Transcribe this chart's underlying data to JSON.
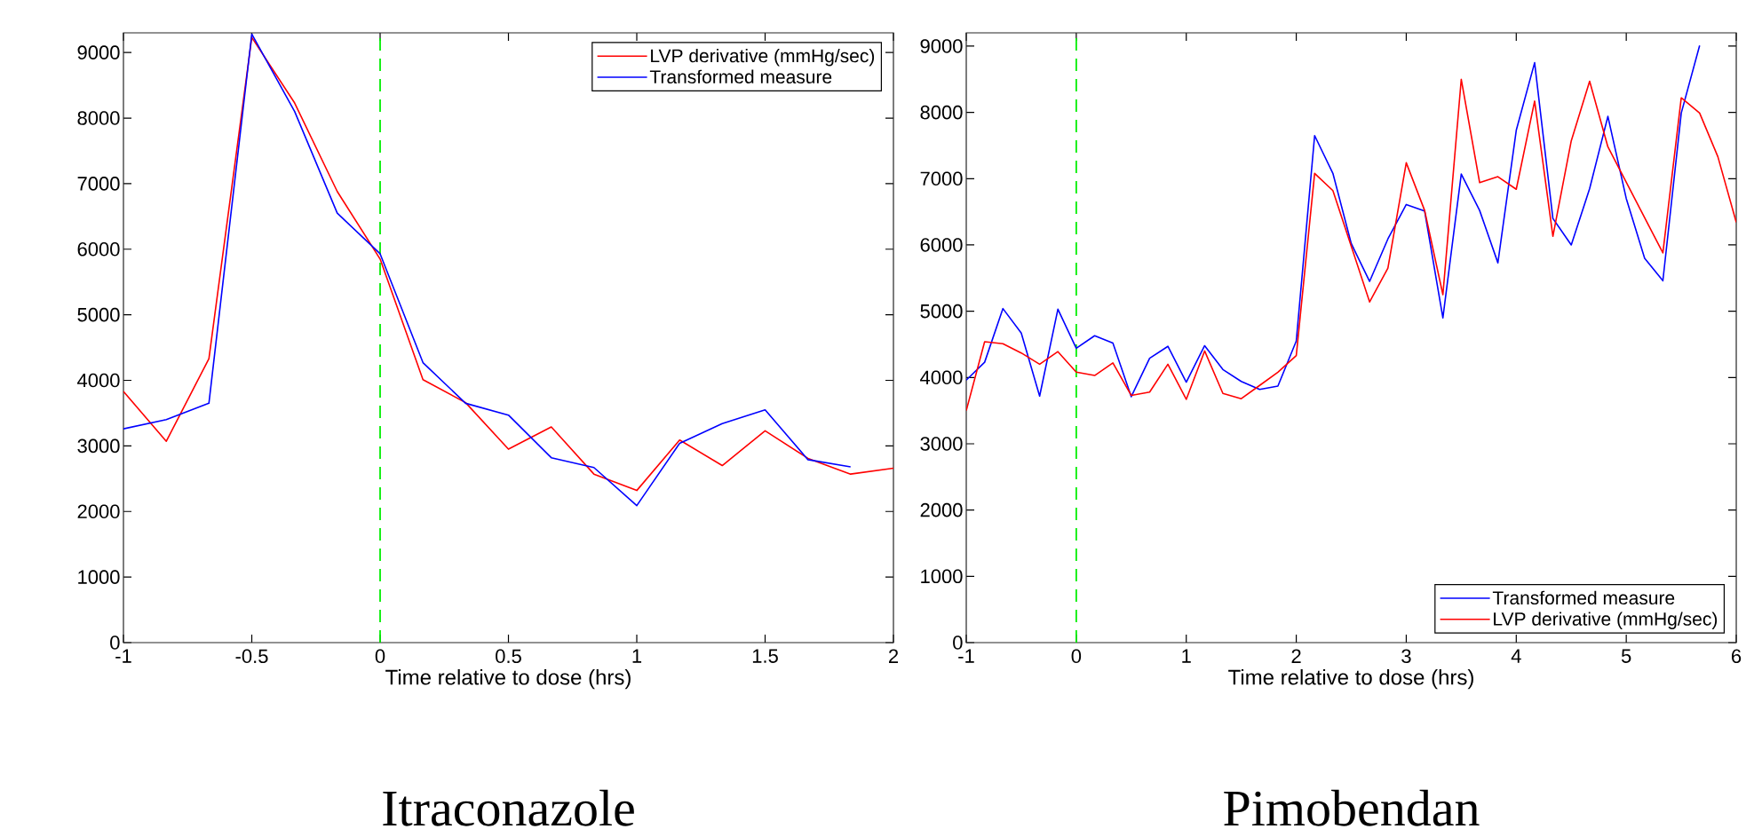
{
  "chart_data": [
    {
      "type": "line",
      "title": "Itraconazole",
      "xlabel": "Time relative to dose (hrs)",
      "xlim": [
        -1,
        2
      ],
      "ylim": [
        0,
        9300
      ],
      "xticks": [
        -1,
        -0.5,
        0,
        0.5,
        1,
        1.5,
        2
      ],
      "yticks": [
        0,
        1000,
        2000,
        3000,
        4000,
        5000,
        6000,
        7000,
        8000,
        9000
      ],
      "legend": "top right",
      "x": [
        -1,
        -0.833,
        -0.667,
        -0.5,
        -0.333,
        -0.167,
        0,
        0.167,
        0.333,
        0.5,
        0.667,
        0.833,
        1,
        1.167,
        1.333,
        1.5,
        1.667,
        1.833,
        2
      ],
      "series": [
        {
          "name": "LVP derivative (mmHg/sec)",
          "color": "#ff0000",
          "values": [
            3830,
            3070,
            4330,
            9230,
            8230,
            6880,
            5850,
            4010,
            3660,
            2950,
            3290,
            2570,
            2320,
            3090,
            2700,
            3230,
            2810,
            2570,
            2660
          ]
        },
        {
          "name": "Transformed measure",
          "color": "#0000ff",
          "x": [
            -1,
            -0.833,
            -0.667,
            -0.5,
            -0.333,
            -0.167,
            0,
            0.167,
            0.333,
            0.5,
            0.667,
            0.833,
            1,
            1.167,
            1.333,
            1.5,
            1.667,
            1.833
          ],
          "values": [
            3260,
            3400,
            3650,
            9280,
            8100,
            6550,
            5930,
            4270,
            3650,
            3470,
            2820,
            2670,
            2090,
            3040,
            3340,
            3550,
            2790,
            2680
          ]
        }
      ],
      "ref_lines": [
        {
          "axis": "x",
          "value": 0,
          "color": "#00ee00",
          "line_style": "dashed"
        }
      ]
    },
    {
      "type": "line",
      "title": "Pimobendan",
      "xlabel": "Time relative to dose (hrs)",
      "xlim": [
        -1,
        6
      ],
      "ylim": [
        0,
        9200
      ],
      "xticks": [
        -1,
        0,
        1,
        2,
        3,
        4,
        5,
        6
      ],
      "yticks": [
        0,
        1000,
        2000,
        3000,
        4000,
        5000,
        6000,
        7000,
        8000,
        9000
      ],
      "legend": "bottom right",
      "series": [
        {
          "name": "Transformed measure",
          "color": "#0000ff",
          "x": [
            -1,
            -0.833,
            -0.667,
            -0.5,
            -0.333,
            -0.167,
            0,
            0.167,
            0.333,
            0.5,
            0.667,
            0.833,
            1,
            1.167,
            1.333,
            1.5,
            1.667,
            1.833,
            2,
            2.167,
            2.333,
            2.5,
            2.667,
            2.833,
            3,
            3.167,
            3.333,
            3.5,
            3.667,
            3.833,
            4,
            4.167,
            4.333,
            4.5,
            4.667,
            4.833,
            5,
            5.167,
            5.333,
            5.5,
            5.667
          ],
          "values": [
            3960,
            4230,
            5040,
            4670,
            3720,
            5030,
            4440,
            4630,
            4520,
            3710,
            4290,
            4470,
            3930,
            4480,
            4120,
            3940,
            3820,
            3870,
            4550,
            7650,
            7080,
            6020,
            5450,
            6090,
            6610,
            6510,
            4900,
            7070,
            6520,
            5730,
            7730,
            8750,
            6400,
            6000,
            6850,
            7940,
            6700,
            5800,
            5460,
            7990,
            9010
          ]
        },
        {
          "name": "LVP derivative (mmHg/sec)",
          "color": "#ff0000",
          "x": [
            -1,
            -0.833,
            -0.667,
            -0.5,
            -0.333,
            -0.167,
            0,
            0.167,
            0.333,
            0.5,
            0.667,
            0.833,
            1,
            1.167,
            1.333,
            1.5,
            1.667,
            1.833,
            2,
            2.167,
            2.333,
            2.5,
            2.667,
            2.833,
            3,
            3.167,
            3.333,
            3.5,
            3.667,
            3.833,
            4,
            4.167,
            4.333,
            4.5,
            4.667,
            4.833,
            5.333,
            5.5,
            5.667,
            5.833,
            6
          ],
          "values": [
            3500,
            4540,
            4510,
            4370,
            4200,
            4390,
            4080,
            4030,
            4220,
            3730,
            3780,
            4200,
            3670,
            4400,
            3760,
            3680,
            3880,
            4080,
            4330,
            7080,
            6820,
            5980,
            5140,
            5650,
            7240,
            6520,
            5250,
            8500,
            6940,
            7030,
            6840,
            8170,
            6130,
            7570,
            8470,
            7480,
            5880,
            8220,
            7990,
            7330,
            6340
          ]
        }
      ],
      "ref_lines": [
        {
          "axis": "x",
          "value": 0,
          "color": "#00ee00",
          "line_style": "dashed"
        }
      ]
    }
  ]
}
